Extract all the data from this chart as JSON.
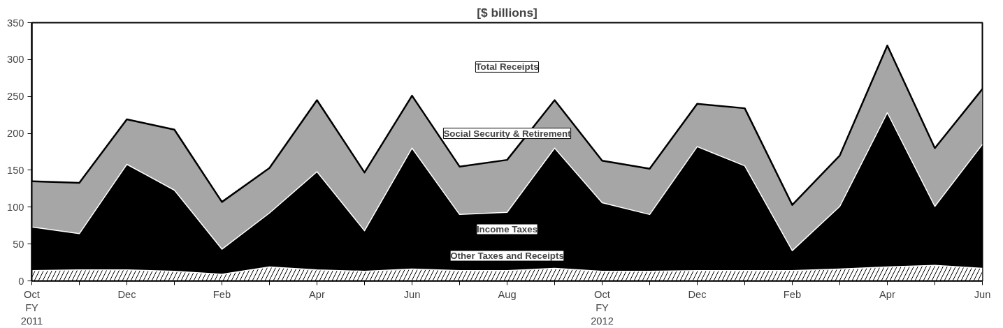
{
  "chart_data": {
    "type": "area",
    "title": "[$ billions]",
    "stacked": true,
    "categories": [
      "Oct\nFY\n2011",
      null,
      "Dec",
      null,
      "Feb",
      null,
      "Apr",
      null,
      "Jun",
      null,
      "Aug",
      null,
      "Oct\nFY\n2012",
      null,
      "Dec",
      null,
      "Feb",
      null,
      "Apr",
      null,
      "Jun"
    ],
    "series": [
      {
        "name": "Other Taxes and Receipts",
        "color": "#000000",
        "values": [
          14,
          15,
          15,
          13,
          9,
          19,
          15,
          13,
          16,
          14,
          14,
          17,
          13,
          13,
          14,
          14,
          14,
          16,
          19,
          21,
          17
        ]
      },
      {
        "name": "Income Taxes",
        "color": "#000000",
        "values": [
          59,
          49,
          143,
          110,
          34,
          73,
          133,
          55,
          164,
          76,
          79,
          163,
          93,
          77,
          168,
          142,
          27,
          85,
          209,
          80,
          168
        ]
      },
      {
        "name": "Social Security & Retirement",
        "color": "#a6a6a6",
        "values": [
          62,
          69,
          61,
          82,
          64,
          61,
          97,
          79,
          71,
          65,
          71,
          65,
          57,
          62,
          58,
          78,
          62,
          69,
          91,
          79,
          75
        ]
      }
    ],
    "annotations": [
      "Total Receipts"
    ],
    "ylim": [
      0,
      350
    ],
    "yticks": [
      0,
      50,
      100,
      150,
      200,
      250,
      300,
      350
    ],
    "grid": false
  }
}
